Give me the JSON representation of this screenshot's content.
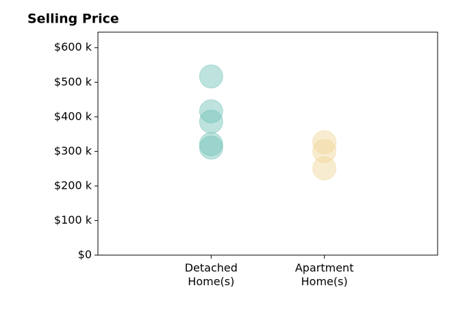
{
  "chart_data": {
    "type": "strip",
    "title": "Selling Price",
    "categories": [
      "Detached Home(s)",
      "Apartment Home(s)"
    ],
    "values": [
      [
        517000,
        416000,
        386000,
        321000,
        311000
      ],
      [
        327000,
        301000,
        251000
      ]
    ],
    "colors": [
      "#6fc0b5",
      "#f0d596"
    ],
    "ylim": [
      0,
      645000
    ],
    "yticks": [
      {
        "value": 0,
        "label": "$0"
      },
      {
        "value": 100000,
        "label": "$100 k"
      },
      {
        "value": 200000,
        "label": "$200 k"
      },
      {
        "value": 300000,
        "label": "$300 k"
      },
      {
        "value": 400000,
        "label": "$400 k"
      },
      {
        "value": 500000,
        "label": "$500 k"
      },
      {
        "value": 600000,
        "label": "$600 k"
      }
    ],
    "grid": false
  }
}
